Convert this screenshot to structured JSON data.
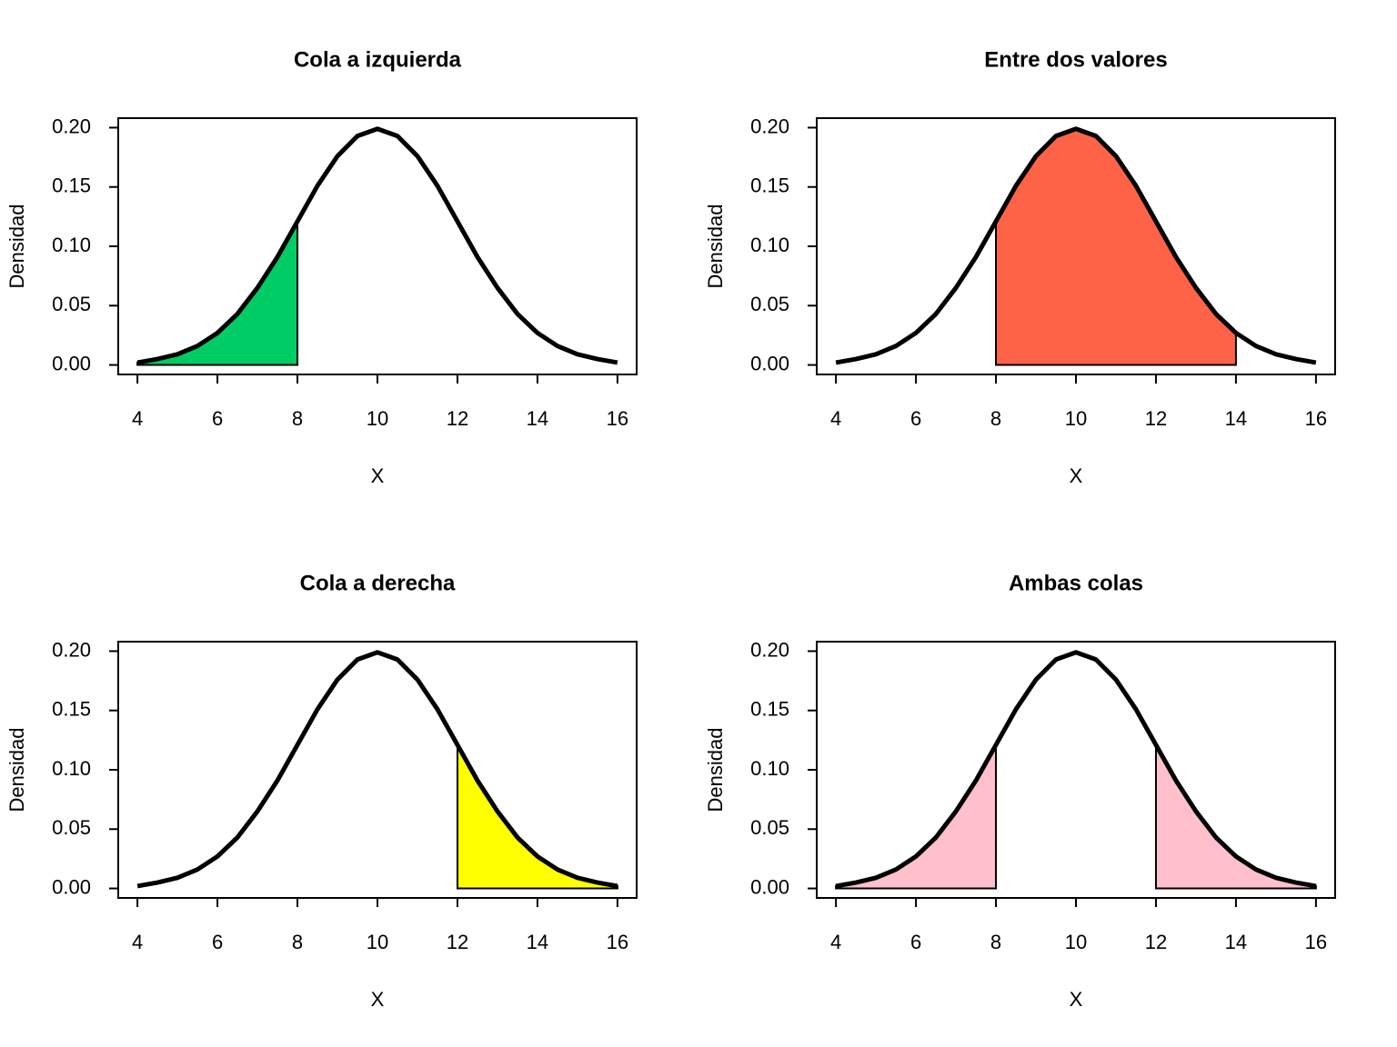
{
  "chart_data": [
    {
      "type": "area-curve",
      "title": "Cola a izquierda",
      "xlabel": "X",
      "ylabel": "Densidad",
      "x": [
        4,
        4.5,
        5,
        5.5,
        6,
        6.5,
        7,
        7.5,
        8,
        8.5,
        9,
        9.5,
        10,
        10.5,
        11,
        11.5,
        12,
        12.5,
        13,
        13.5,
        14,
        14.5,
        15,
        15.5,
        16
      ],
      "values": [
        0.002,
        0.005,
        0.009,
        0.016,
        0.027,
        0.043,
        0.065,
        0.091,
        0.121,
        0.151,
        0.176,
        0.193,
        0.199,
        0.193,
        0.176,
        0.151,
        0.121,
        0.091,
        0.065,
        0.043,
        0.027,
        0.016,
        0.009,
        0.005,
        0.002
      ],
      "color": "#000000",
      "fill_ranges": [
        [
          4,
          8
        ]
      ],
      "fill_color": "#00cc66",
      "xlim": [
        3.52,
        16.48
      ],
      "ylim": [
        -0.008,
        0.208
      ],
      "xticks": [
        4,
        6,
        8,
        10,
        12,
        14,
        16
      ],
      "yticks": [
        {
          "value": 0,
          "label": "0.00"
        },
        {
          "value": 0.05,
          "label": "0.05"
        },
        {
          "value": 0.1,
          "label": "0.10"
        },
        {
          "value": 0.15,
          "label": "0.15"
        },
        {
          "value": 0.2,
          "label": "0.20"
        }
      ]
    },
    {
      "type": "area-curve",
      "title": "Entre dos valores",
      "xlabel": "X",
      "ylabel": "Densidad",
      "x": [
        4,
        4.5,
        5,
        5.5,
        6,
        6.5,
        7,
        7.5,
        8,
        8.5,
        9,
        9.5,
        10,
        10.5,
        11,
        11.5,
        12,
        12.5,
        13,
        13.5,
        14,
        14.5,
        15,
        15.5,
        16
      ],
      "values": [
        0.002,
        0.005,
        0.009,
        0.016,
        0.027,
        0.043,
        0.065,
        0.091,
        0.121,
        0.151,
        0.176,
        0.193,
        0.199,
        0.193,
        0.176,
        0.151,
        0.121,
        0.091,
        0.065,
        0.043,
        0.027,
        0.016,
        0.009,
        0.005,
        0.002
      ],
      "color": "#000000",
      "fill_ranges": [
        [
          8,
          14
        ]
      ],
      "fill_color": "#ff6347",
      "xlim": [
        3.52,
        16.48
      ],
      "ylim": [
        -0.008,
        0.208
      ],
      "xticks": [
        4,
        6,
        8,
        10,
        12,
        14,
        16
      ],
      "yticks": [
        {
          "value": 0,
          "label": "0.00"
        },
        {
          "value": 0.05,
          "label": "0.05"
        },
        {
          "value": 0.1,
          "label": "0.10"
        },
        {
          "value": 0.15,
          "label": "0.15"
        },
        {
          "value": 0.2,
          "label": "0.20"
        }
      ]
    },
    {
      "type": "area-curve",
      "title": "Cola a derecha",
      "xlabel": "X",
      "ylabel": "Densidad",
      "x": [
        4,
        4.5,
        5,
        5.5,
        6,
        6.5,
        7,
        7.5,
        8,
        8.5,
        9,
        9.5,
        10,
        10.5,
        11,
        11.5,
        12,
        12.5,
        13,
        13.5,
        14,
        14.5,
        15,
        15.5,
        16
      ],
      "values": [
        0.002,
        0.005,
        0.009,
        0.016,
        0.027,
        0.043,
        0.065,
        0.091,
        0.121,
        0.151,
        0.176,
        0.193,
        0.199,
        0.193,
        0.176,
        0.151,
        0.121,
        0.091,
        0.065,
        0.043,
        0.027,
        0.016,
        0.009,
        0.005,
        0.002
      ],
      "color": "#000000",
      "fill_ranges": [
        [
          12,
          16
        ]
      ],
      "fill_color": "#ffff00",
      "xlim": [
        3.52,
        16.48
      ],
      "ylim": [
        -0.008,
        0.208
      ],
      "xticks": [
        4,
        6,
        8,
        10,
        12,
        14,
        16
      ],
      "yticks": [
        {
          "value": 0,
          "label": "0.00"
        },
        {
          "value": 0.05,
          "label": "0.05"
        },
        {
          "value": 0.1,
          "label": "0.10"
        },
        {
          "value": 0.15,
          "label": "0.15"
        },
        {
          "value": 0.2,
          "label": "0.20"
        }
      ]
    },
    {
      "type": "area-curve",
      "title": "Ambas colas",
      "xlabel": "X",
      "ylabel": "Densidad",
      "x": [
        4,
        4.5,
        5,
        5.5,
        6,
        6.5,
        7,
        7.5,
        8,
        8.5,
        9,
        9.5,
        10,
        10.5,
        11,
        11.5,
        12,
        12.5,
        13,
        13.5,
        14,
        14.5,
        15,
        15.5,
        16
      ],
      "values": [
        0.002,
        0.005,
        0.009,
        0.016,
        0.027,
        0.043,
        0.065,
        0.091,
        0.121,
        0.151,
        0.176,
        0.193,
        0.199,
        0.193,
        0.176,
        0.151,
        0.121,
        0.091,
        0.065,
        0.043,
        0.027,
        0.016,
        0.009,
        0.005,
        0.002
      ],
      "color": "#000000",
      "fill_ranges": [
        [
          4,
          8
        ],
        [
          12,
          16
        ]
      ],
      "fill_color": "#ffc0cb",
      "xlim": [
        3.52,
        16.48
      ],
      "ylim": [
        -0.008,
        0.208
      ],
      "xticks": [
        4,
        6,
        8,
        10,
        12,
        14,
        16
      ],
      "yticks": [
        {
          "value": 0,
          "label": "0.00"
        },
        {
          "value": 0.05,
          "label": "0.05"
        },
        {
          "value": 0.1,
          "label": "0.10"
        },
        {
          "value": 0.15,
          "label": "0.15"
        },
        {
          "value": 0.2,
          "label": "0.20"
        }
      ]
    }
  ]
}
